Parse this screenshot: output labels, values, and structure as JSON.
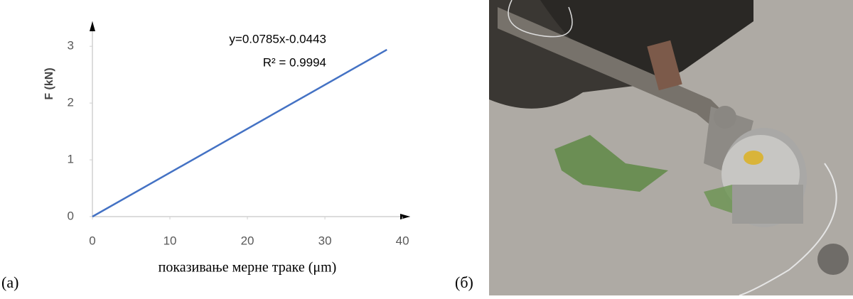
{
  "chart_data": {
    "type": "line",
    "x_label": "показивање мерне траке (μm)",
    "y_label": "F (kN)",
    "annotations": [
      "y=0.0785x-0.0443",
      "R² = 0.9994"
    ],
    "x": [
      0,
      38
    ],
    "series": [
      {
        "color": "#4472c4",
        "values": [
          0,
          2.94
        ]
      }
    ],
    "xlim": [
      0,
      41
    ],
    "xticks": [
      0,
      10,
      20,
      30,
      40
    ],
    "ylim": [
      0,
      3.44
    ],
    "yticks": [
      0,
      1,
      2,
      3
    ],
    "grid": false
  },
  "panel_labels": [
    "(a)",
    "(б)"
  ]
}
